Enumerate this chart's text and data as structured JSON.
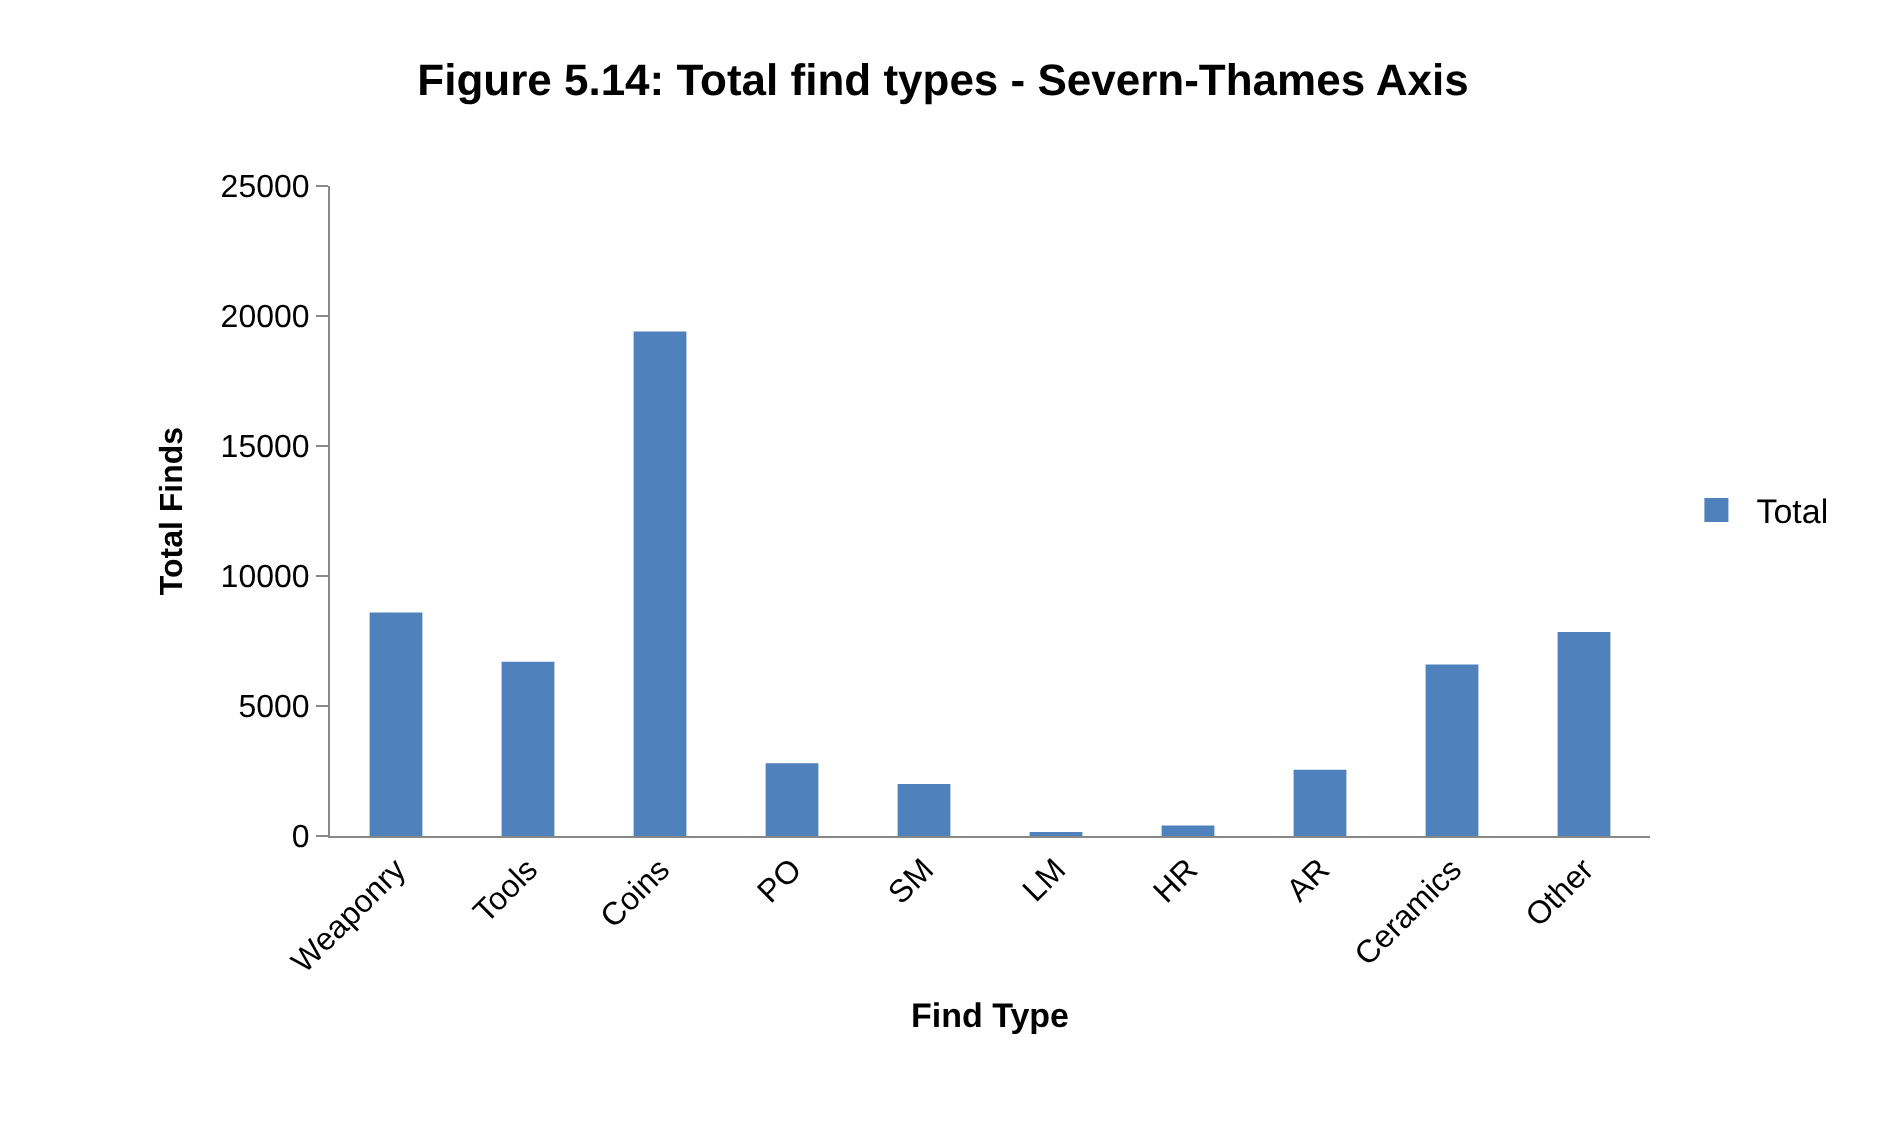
{
  "chart_data": {
    "type": "bar",
    "title": "Figure 5.14: Total find types - Severn-Thames Axis",
    "xlabel": "Find Type",
    "ylabel": "Total Finds",
    "categories": [
      "Weaponry",
      "Tools",
      "Coins",
      "PO",
      "SM",
      "LM",
      "HR",
      "AR",
      "Ceramics",
      "Other"
    ],
    "series": [
      {
        "name": "Total",
        "color": "#4f81bd",
        "values": [
          8600,
          6700,
          19400,
          2800,
          2000,
          100,
          400,
          2550,
          6600,
          7850
        ]
      }
    ],
    "ylim": [
      0,
      25000
    ],
    "yticks": [
      0,
      5000,
      10000,
      15000,
      20000,
      25000
    ],
    "grid": false,
    "legend": "right"
  }
}
